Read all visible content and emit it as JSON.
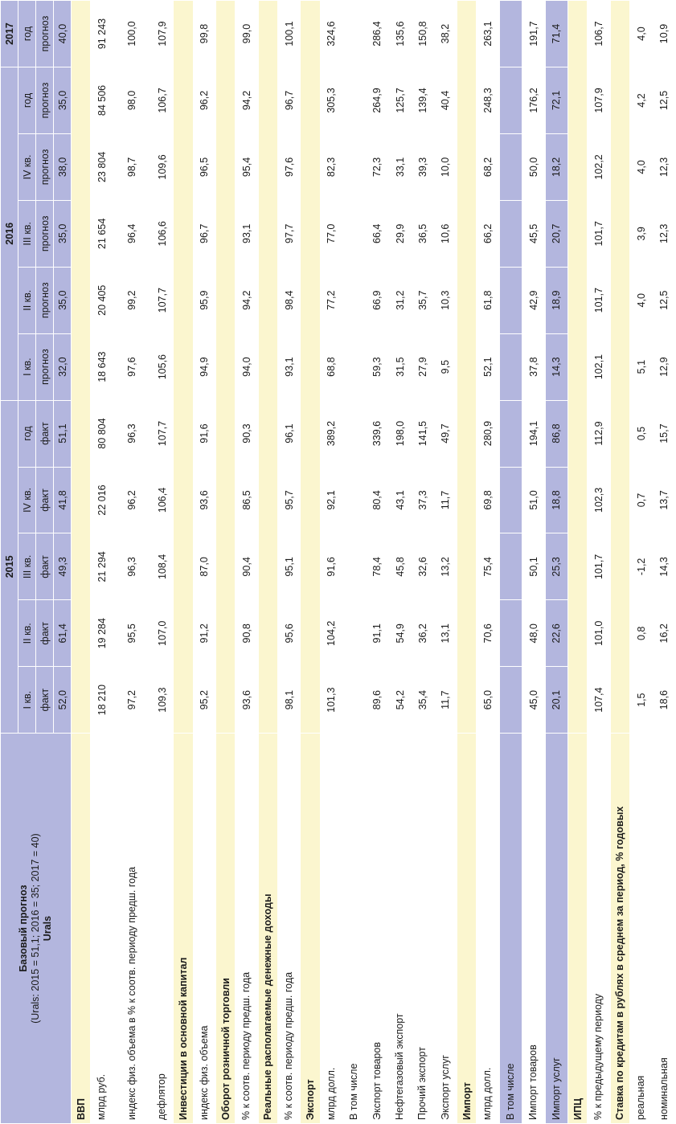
{
  "table": {
    "title_line1": "Базовый прогноз",
    "title_line2": "(Urals: 2015 = 51,1; 2016 = 35; 2017 = 40)",
    "years": [
      "2015",
      "2016",
      "2017"
    ],
    "periods": [
      "I кв.",
      "II кв.",
      "III кв.",
      "IV кв.",
      "год",
      "I кв.",
      "II кв.",
      "III кв.",
      "IV кв.",
      "год",
      "год"
    ],
    "kinds": [
      "факт",
      "факт",
      "факт",
      "факт",
      "факт",
      "прогноз",
      "прогноз",
      "прогноз",
      "прогноз",
      "прогноз",
      "прогноз"
    ],
    "urals_label": "Urals",
    "urals": [
      "52,0",
      "61,4",
      "49,3",
      "41,8",
      "51,1",
      "32,0",
      "35,0",
      "35,0",
      "38,0",
      "35,0",
      "40,0"
    ],
    "sections": [
      {
        "title": "ВВП",
        "rows": [
          {
            "label": "млрд руб.",
            "values": [
              "18 210",
              "19 284",
              "21 294",
              "22 016",
              "80 804",
              "18 643",
              "20 405",
              "21 654",
              "23 804",
              "84 506",
              "91 243"
            ]
          },
          {
            "label": "индекс физ. объема в % к соотв. периоду предш. года",
            "values": [
              "97,2",
              "95,5",
              "96,3",
              "96,2",
              "96,3",
              "97,6",
              "99,2",
              "96,4",
              "98,7",
              "98,0",
              "100,0"
            ]
          },
          {
            "label": "дефлятор",
            "values": [
              "109,3",
              "107,0",
              "108,4",
              "106,4",
              "107,7",
              "105,6",
              "107,7",
              "106,6",
              "109,6",
              "106,7",
              "107,9"
            ]
          }
        ]
      },
      {
        "title": "Инвестиции в основной капитал",
        "rows": [
          {
            "label": "индекс физ. объема",
            "values": [
              "95,2",
              "91,2",
              "87,0",
              "93,6",
              "91,6",
              "94,9",
              "95,9",
              "96,7",
              "96,5",
              "96,2",
              "99,8"
            ]
          }
        ]
      },
      {
        "title": "Оборот розничной торговли",
        "rows": [
          {
            "label": "% к соотв. периоду предш. года",
            "values": [
              "93,6",
              "90,8",
              "90,4",
              "86,5",
              "90,3",
              "94,0",
              "94,2",
              "93,1",
              "95,4",
              "94,2",
              "99,0"
            ]
          }
        ]
      },
      {
        "title": "Реальные располагаемые денежные доходы",
        "rows": [
          {
            "label": "% к соотв. периоду предш. года",
            "values": [
              "98,1",
              "95,6",
              "95,1",
              "95,7",
              "96,1",
              "93,1",
              "98,4",
              "97,7",
              "97,6",
              "96,7",
              "100,1"
            ]
          }
        ]
      },
      {
        "title": "Экспорт",
        "rows": [
          {
            "label": "млрд долл.",
            "values": [
              "101,3",
              "104,2",
              "91,6",
              "92,1",
              "389,2",
              "68,8",
              "77,2",
              "77,0",
              "82,3",
              "305,3",
              "324,6"
            ]
          },
          {
            "label": "В том числе",
            "values": [
              "",
              "",
              "",
              "",
              "",
              "",
              "",
              "",
              "",
              "",
              ""
            ]
          },
          {
            "label": "Экспорт товаров",
            "values": [
              "89,6",
              "91,1",
              "78,4",
              "80,4",
              "339,6",
              "59,3",
              "66,9",
              "66,4",
              "72,3",
              "264,9",
              "286,4"
            ]
          },
          {
            "label": "Нефтегазовый экспорт",
            "values": [
              "54,2",
              "54,9",
              "45,8",
              "43,1",
              "198,0",
              "31,5",
              "31,2",
              "29,9",
              "33,1",
              "125,7",
              "135,6"
            ]
          },
          {
            "label": "Прочий экспорт",
            "values": [
              "35,4",
              "36,2",
              "32,6",
              "37,3",
              "141,5",
              "27,9",
              "35,7",
              "36,5",
              "39,3",
              "139,4",
              "150,8"
            ]
          },
          {
            "label": "Экспорт услуг",
            "values": [
              "11,7",
              "13,1",
              "13,2",
              "11,7",
              "49,7",
              "9,5",
              "10,3",
              "10,6",
              "10,0",
              "40,4",
              "38,2"
            ]
          }
        ]
      },
      {
        "title": "Импорт",
        "rows": [
          {
            "label": "млрд долл.",
            "values": [
              "65,0",
              "70,6",
              "75,4",
              "69,8",
              "280,9",
              "52,1",
              "61,8",
              "66,2",
              "68,2",
              "248,3",
              "263,1"
            ]
          },
          {
            "label": "В том числе",
            "values": [
              "",
              "",
              "",
              "",
              "",
              "",
              "",
              "",
              "",
              "",
              ""
            ]
          },
          {
            "label": "Импорт товаров",
            "values": [
              "45,0",
              "48,0",
              "50,1",
              "51,0",
              "194,1",
              "37,8",
              "42,9",
              "45,5",
              "50,0",
              "176,2",
              "191,7"
            ]
          },
          {
            "label": "Импорт услуг",
            "values": [
              "20,1",
              "22,6",
              "25,3",
              "18,8",
              "86,8",
              "14,3",
              "18,9",
              "20,7",
              "18,2",
              "72,1",
              "71,4"
            ]
          }
        ]
      },
      {
        "title": "ИПЦ",
        "rows": [
          {
            "label": "% к предыдущему периоду",
            "values": [
              "107,4",
              "101,0",
              "101,7",
              "102,3",
              "112,9",
              "102,1",
              "101,7",
              "101,7",
              "102,2",
              "107,9",
              "106,7"
            ]
          }
        ]
      },
      {
        "title": "Ставка по кредитам в рублях в среднем за период, % годовых",
        "rows": [
          {
            "label": "реальная",
            "values": [
              "1,5",
              "0,8",
              "-1,2",
              "0,7",
              "0,5",
              "5,1",
              "4,0",
              "3,9",
              "4,0",
              "4,2",
              "4,0"
            ]
          },
          {
            "label": "номинальная",
            "values": [
              "18,6",
              "16,2",
              "14,3",
              "13,7",
              "15,7",
              "12,9",
              "12,5",
              "12,3",
              "12,3",
              "12,5",
              "10,9"
            ]
          }
        ]
      }
    ]
  },
  "colors": {
    "header_band": "#b3b6de",
    "section_band": "#fbf6cf",
    "data_band": "#b3b6de",
    "white": "#ffffff"
  }
}
